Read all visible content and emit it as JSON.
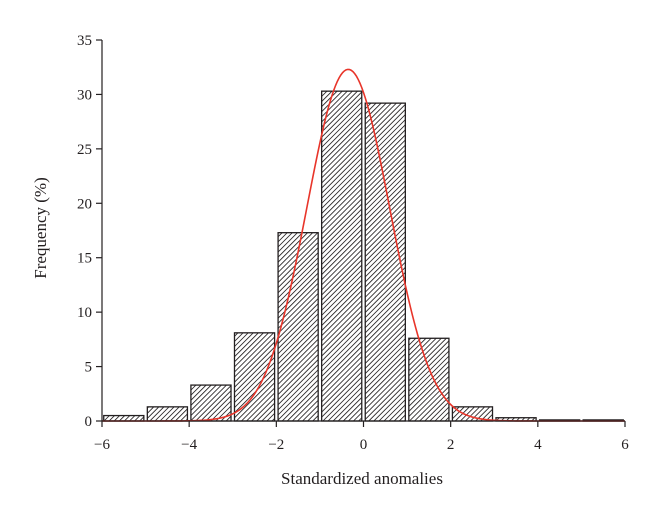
{
  "chart_data": {
    "type": "bar",
    "title": "",
    "xlabel": "Standardized anomalies",
    "ylabel": "Frequency (%)",
    "xlim": [
      -6,
      6
    ],
    "ylim": [
      0,
      35
    ],
    "xticks": [
      -6,
      -4,
      -2,
      0,
      2,
      4,
      6
    ],
    "yticks": [
      0,
      5,
      10,
      15,
      20,
      25,
      30,
      35
    ],
    "xtick_labels": [
      "−6",
      "−4",
      "−2",
      "0",
      "2",
      "4",
      "6"
    ],
    "ytick_labels": [
      "0",
      "5",
      "10",
      "15",
      "20",
      "25",
      "30",
      "35"
    ],
    "bin_width": 1,
    "bins": [
      {
        "from": -6,
        "to": -5,
        "value": 0.5
      },
      {
        "from": -5,
        "to": -4,
        "value": 1.3
      },
      {
        "from": -4,
        "to": -3,
        "value": 3.3
      },
      {
        "from": -3,
        "to": -2,
        "value": 8.1
      },
      {
        "from": -2,
        "to": -1,
        "value": 17.3
      },
      {
        "from": -1,
        "to": 0,
        "value": 30.3
      },
      {
        "from": 0,
        "to": 1,
        "value": 29.2
      },
      {
        "from": 1,
        "to": 2,
        "value": 7.6
      },
      {
        "from": 2,
        "to": 3,
        "value": 1.3
      },
      {
        "from": 3,
        "to": 4,
        "value": 0.3
      },
      {
        "from": 4,
        "to": 5,
        "value": 0.1
      },
      {
        "from": 5,
        "to": 6,
        "value": 0.1
      }
    ],
    "fit_curve": {
      "type": "gaussian",
      "peak_x": -0.35,
      "peak_y": 32.3,
      "sigma": 0.95,
      "color": "#e8352a"
    },
    "bar_fill": "hatched",
    "bar_color": "#231f20",
    "grid": false,
    "legend": "none"
  }
}
